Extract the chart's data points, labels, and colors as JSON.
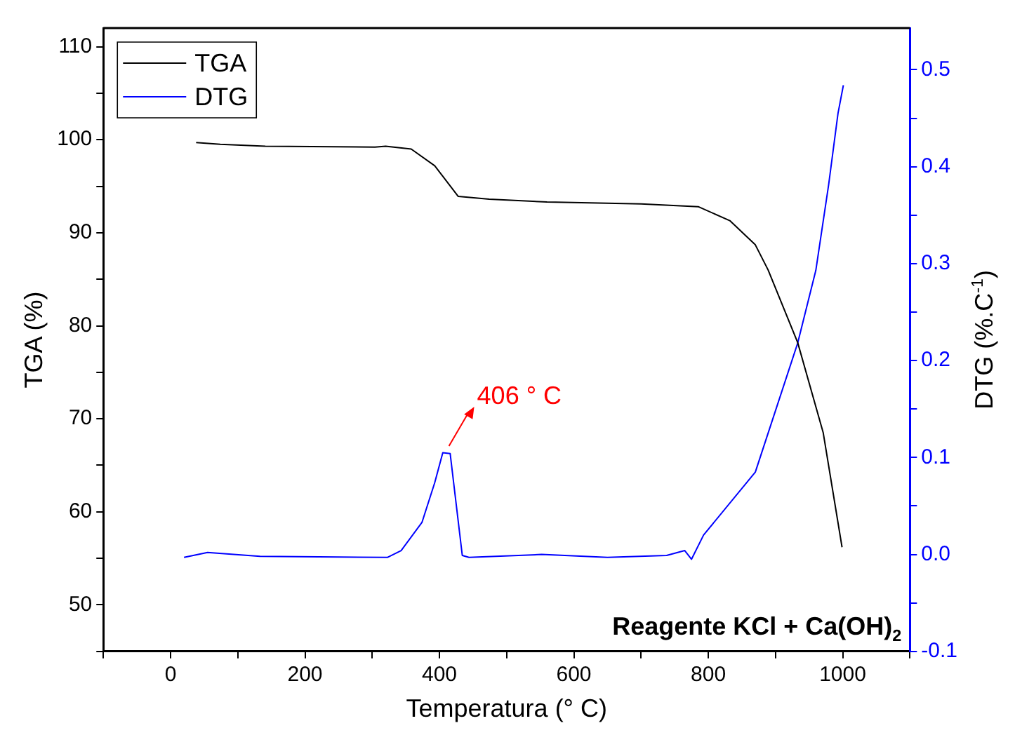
{
  "chart_data": {
    "type": "line",
    "xlabel": "Temperatura (° C)",
    "ylabel": "TGA (%)",
    "y2label": "DTG (%.C$^{-1}$)",
    "xlim": [
      -100,
      1100
    ],
    "xticks": [
      {
        "value": -100,
        "label": null
      },
      0,
      {
        "value": 100,
        "label": null
      },
      200,
      {
        "value": 300,
        "label": null
      },
      400,
      {
        "value": 500,
        "label": null
      },
      600,
      {
        "value": 700,
        "label": null
      },
      800,
      {
        "value": 900,
        "label": null
      },
      1000,
      {
        "value": 1100,
        "label": null
      }
    ],
    "ylim": [
      45,
      112
    ],
    "yticks": [
      {
        "value": 45,
        "label": null
      },
      50,
      {
        "value": 55,
        "label": null
      },
      60,
      {
        "value": 65,
        "label": null
      },
      70,
      {
        "value": 75,
        "label": null
      },
      80,
      {
        "value": 85,
        "label": null
      },
      90,
      {
        "value": 95,
        "label": null
      },
      100,
      {
        "value": 105,
        "label": null
      },
      110
    ],
    "y2lim": [
      -0.1,
      0.543
    ],
    "y2ticks": [
      {
        "value": -0.1,
        "label": "-0.1"
      },
      {
        "value": -0.05,
        "label": null
      },
      {
        "value": 0,
        "label": "0.0"
      },
      {
        "value": 0.05,
        "label": null
      },
      {
        "value": 0.1,
        "label": "0.1"
      },
      {
        "value": 0.15,
        "label": null
      },
      {
        "value": 0.2,
        "label": "0.2"
      },
      {
        "value": 0.25,
        "label": null
      },
      {
        "value": 0.3,
        "label": "0.3"
      },
      {
        "value": 0.35,
        "label": null
      },
      {
        "value": 0.4,
        "label": "0.4"
      },
      {
        "value": 0.45,
        "label": null
      },
      {
        "value": 0.5,
        "label": "0.5"
      }
    ],
    "legend": "top left",
    "marker": "none",
    "line_style": "solid",
    "grid": false,
    "annotations": [
      "406 ° C",
      "Reagente KCl + Ca(OH)$_{2}$"
    ],
    "series": [
      {
        "name": "TGA",
        "color": "#000000",
        "x": [
          38,
          74,
          141,
          304,
          320,
          358,
          393,
          428,
          474,
          560,
          700,
          785,
          832,
          870,
          889,
          933,
          971,
          999
        ],
        "values": [
          99.7,
          99.5,
          99.3,
          99.2,
          99.3,
          99.0,
          97.2,
          93.9,
          93.6,
          93.3,
          93.1,
          92.8,
          91.3,
          88.7,
          86.0,
          78.2,
          68.5,
          56.2
        ]
      },
      {
        "name": "DTG",
        "color": "#0000ff",
        "axis": "y2",
        "x": [
          20,
          55,
          133,
          323,
          343,
          374,
          393,
          405,
          416,
          434,
          444,
          552,
          650,
          738,
          765,
          775,
          793,
          870,
          933,
          960,
          979,
          993,
          1001
        ],
        "values": [
          -0.003,
          0.002,
          -0.002,
          -0.003,
          0.004,
          0.033,
          0.074,
          0.105,
          0.104,
          -0.001,
          -0.003,
          0.0,
          -0.003,
          -0.001,
          0.004,
          -0.005,
          0.02,
          0.085,
          0.218,
          0.293,
          0.381,
          0.455,
          0.484
        ]
      }
    ]
  }
}
